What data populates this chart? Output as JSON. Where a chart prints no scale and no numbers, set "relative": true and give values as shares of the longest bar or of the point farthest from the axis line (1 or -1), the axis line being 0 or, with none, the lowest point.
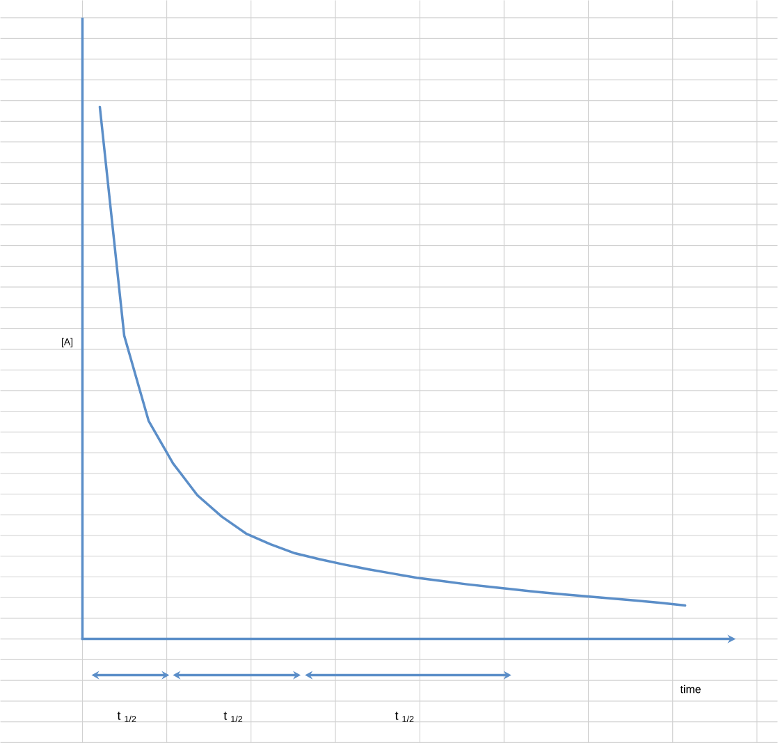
{
  "chart_data": {
    "type": "line",
    "relative": true,
    "xlabel": "time",
    "ylabel": "[A]",
    "grid": true,
    "categories": [
      null,
      null,
      null,
      null,
      null,
      null,
      null,
      null,
      null,
      null,
      null,
      null,
      null,
      null,
      null,
      null,
      null,
      null,
      null,
      null,
      null,
      null,
      null,
      null,
      null
    ],
    "series": [
      {
        "color": "#5b8ec8",
        "values": [
          1.0,
          0.57,
          0.41,
          0.33,
          0.27,
          0.23,
          0.198,
          0.178,
          0.161,
          0.15,
          0.14,
          0.131,
          0.123,
          0.115,
          0.109,
          0.103,
          0.098,
          0.093,
          0.088,
          0.084,
          0.08,
          0.076,
          0.072,
          0.068,
          0.063
        ]
      }
    ],
    "annotations": [
      "t $_{1/2}$",
      "t $_{1/2}$",
      "t $_{1/2}$"
    ]
  }
}
